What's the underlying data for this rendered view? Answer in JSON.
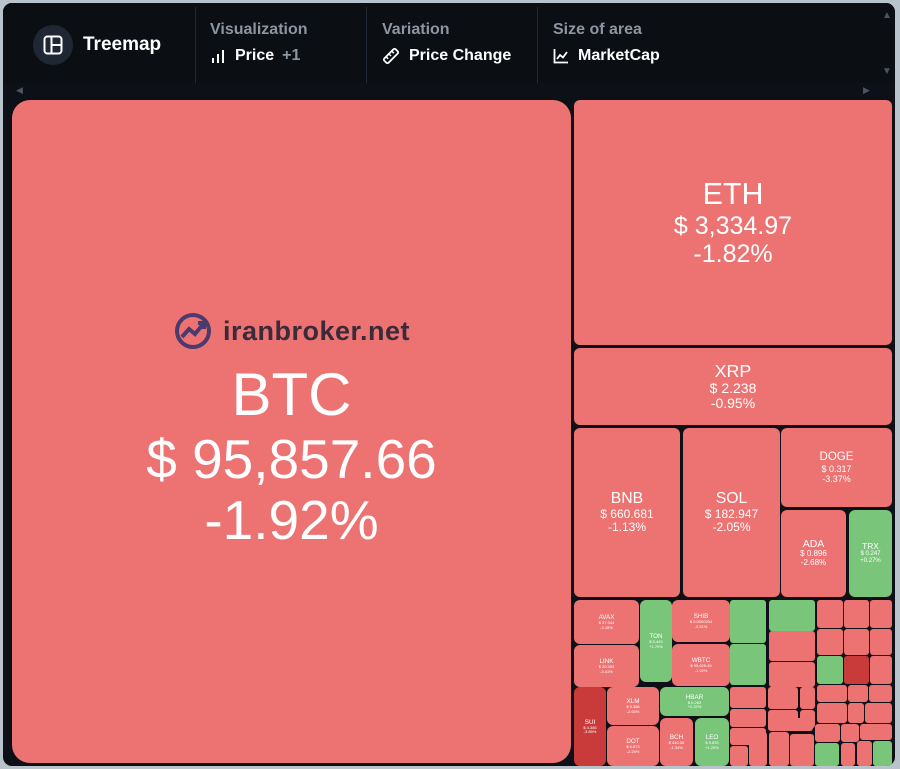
{
  "header": {
    "title": "Treemap",
    "visualization": {
      "label": "Visualization",
      "value": "Price",
      "extra": "+1"
    },
    "variation": {
      "label": "Variation",
      "value": "Price Change"
    },
    "size": {
      "label": "Size of area",
      "value": "MarketCap"
    }
  },
  "colors": {
    "negative": "#ed7272",
    "positive": "#79c67b",
    "strong_negative": "#c93b3b",
    "background": "#0d1117"
  },
  "logo": {
    "text": "iranbroker.net"
  },
  "tiles": [
    {
      "symbol": "BTC",
      "price": "$ 95,857.66",
      "change": "-1.92%",
      "color": "#ed7272"
    },
    {
      "symbol": "ETH",
      "price": "$ 3,334.97",
      "change": "-1.82%",
      "color": "#ed7272"
    },
    {
      "symbol": "XRP",
      "price": "$ 2.238",
      "change": "-0.95%",
      "color": "#ed7272"
    },
    {
      "symbol": "BNB",
      "price": "$ 660.681",
      "change": "-1.13%",
      "color": "#ed7272"
    },
    {
      "symbol": "SOL",
      "price": "$ 182.947",
      "change": "-2.05%",
      "color": "#ed7272"
    },
    {
      "symbol": "DOGE",
      "price": "$ 0.317",
      "change": "-3.37%",
      "color": "#ed7272"
    },
    {
      "symbol": "ADA",
      "price": "$ 0.896",
      "change": "-2.68%",
      "color": "#ed7272"
    },
    {
      "symbol": "TRX",
      "price": "$ 0.247",
      "change": "+0.27%",
      "color": "#79c67b"
    },
    {
      "symbol": "AVAX",
      "price": "$ 37.344",
      "change": "-3.18%",
      "color": "#ed7272"
    },
    {
      "symbol": "TON",
      "price": "$ 5.443",
      "change": "+1.70%",
      "color": "#79c67b"
    },
    {
      "symbol": "SHIB",
      "price": "$ 0.0000204",
      "change": "-2.51%",
      "color": "#ed7272"
    },
    {
      "symbol": "LINK",
      "price": "$ 20.083",
      "change": "-3.41%",
      "color": "#ed7272"
    },
    {
      "symbol": "WBTC",
      "price": "$ 95,625.45",
      "change": "-1.92%",
      "color": "#ed7272"
    },
    {
      "symbol": "SUI",
      "price": "$ 4.385",
      "change": "-3.85%",
      "color": "#c93b3b"
    },
    {
      "symbol": "XLM",
      "price": "$ 0.386",
      "change": "-2.63%",
      "color": "#ed7272"
    },
    {
      "symbol": "HBAR",
      "price": "$ 0.283",
      "change": "+2.22%",
      "color": "#79c67b"
    },
    {
      "symbol": "DOT",
      "price": "$ 6.873",
      "change": "-2.25%",
      "color": "#ed7272"
    },
    {
      "symbol": "BCH",
      "price": "$ 440.00",
      "change": "-1.34%",
      "color": "#ed7272"
    },
    {
      "symbol": "LEO",
      "price": "$ 9.833",
      "change": "+1.25%",
      "color": "#79c67b"
    }
  ]
}
